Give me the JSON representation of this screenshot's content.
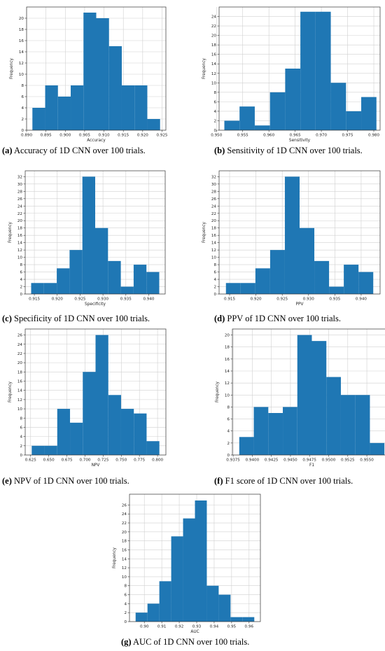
{
  "chart_data": [
    {
      "id": "a",
      "type": "bar",
      "caption_label": "(a)",
      "caption_text": " Accuracy of 1D CNN over 100 trials.",
      "xlabel": "Accuracy",
      "ylabel": "Frequency",
      "bins": [
        0.8915,
        0.8948,
        0.8981,
        0.9014,
        0.9047,
        0.908,
        0.9113,
        0.9146,
        0.9179,
        0.9212,
        0.9245
      ],
      "counts": [
        4,
        8,
        6,
        8,
        21,
        20,
        15,
        8,
        8,
        2
      ],
      "xlim": [
        0.89,
        0.926
      ],
      "ylim": [
        0,
        22
      ],
      "xticks": [
        0.89,
        0.895,
        0.9,
        0.905,
        0.91,
        0.915,
        0.92,
        0.925
      ],
      "xtick_labels": [
        "0.890",
        "0.895",
        "0.900",
        "0.905",
        "0.910",
        "0.915",
        "0.920",
        "0.925"
      ],
      "yticks": [
        0,
        2,
        4,
        6,
        8,
        10,
        12,
        14,
        16,
        18,
        20
      ],
      "grid": true,
      "color": "#1f77b4"
    },
    {
      "id": "b",
      "type": "bar",
      "caption_label": "(b)",
      "caption_text": " Sensitivity of 1D CNN over 100 trials.",
      "xlabel": "Sensitivity",
      "ylabel": "Frequency",
      "bins": [
        0.9515,
        0.9544,
        0.9573,
        0.9602,
        0.9631,
        0.966,
        0.9689,
        0.9718,
        0.9747,
        0.9776,
        0.9805
      ],
      "counts": [
        2,
        5,
        1,
        8,
        13,
        25,
        25,
        10,
        4,
        7
      ],
      "xlim": [
        0.9505,
        0.9812
      ],
      "ylim": [
        0,
        26
      ],
      "xticks": [
        0.95,
        0.955,
        0.96,
        0.965,
        0.97,
        0.975,
        0.98
      ],
      "xtick_labels": [
        "0.950",
        "0.955",
        "0.960",
        "0.965",
        "0.970",
        "0.975",
        "0.980"
      ],
      "yticks": [
        0,
        2,
        4,
        6,
        8,
        10,
        12,
        14,
        16,
        18,
        20,
        22,
        24
      ],
      "grid": true,
      "color": "#1f77b4"
    },
    {
      "id": "c",
      "type": "bar",
      "caption_label": "(c)",
      "caption_text": " Specificity of 1D CNN over 100 trials.",
      "xlabel": "Specificity",
      "ylabel": "Frequency",
      "bins": [
        0.9143,
        0.9171,
        0.9199,
        0.9227,
        0.9255,
        0.9283,
        0.9311,
        0.9339,
        0.9367,
        0.9395,
        0.9423
      ],
      "counts": [
        3,
        3,
        7,
        12,
        32,
        18,
        9,
        2,
        8,
        6
      ],
      "xlim": [
        0.913,
        0.9436
      ],
      "ylim": [
        0,
        33.6
      ],
      "xticks": [
        0.915,
        0.92,
        0.925,
        0.93,
        0.935,
        0.94
      ],
      "xtick_labels": [
        "0.915",
        "0.920",
        "0.925",
        "0.930",
        "0.935",
        "0.940"
      ],
      "yticks": [
        0,
        2,
        4,
        6,
        8,
        10,
        12,
        14,
        16,
        18,
        20,
        22,
        24,
        26,
        28,
        30,
        32
      ],
      "grid": true,
      "color": "#1f77b4"
    },
    {
      "id": "d",
      "type": "bar",
      "caption_label": "(d)",
      "caption_text": " PPV of 1D CNN over 100 trials.",
      "xlabel": "PPV",
      "ylabel": "Frequency",
      "bins": [
        0.9143,
        0.9171,
        0.9199,
        0.9227,
        0.9255,
        0.9283,
        0.9311,
        0.9339,
        0.9367,
        0.9395,
        0.9423
      ],
      "counts": [
        3,
        3,
        7,
        12,
        32,
        18,
        9,
        2,
        8,
        6
      ],
      "xlim": [
        0.913,
        0.9436
      ],
      "ylim": [
        0,
        33.6
      ],
      "xticks": [
        0.915,
        0.92,
        0.925,
        0.93,
        0.935,
        0.94
      ],
      "xtick_labels": [
        "0.915",
        "0.920",
        "0.925",
        "0.930",
        "0.935",
        "0.940"
      ],
      "yticks": [
        0,
        2,
        4,
        6,
        8,
        10,
        12,
        14,
        16,
        18,
        20,
        22,
        24,
        26,
        28,
        30,
        32
      ],
      "grid": true,
      "color": "#1f77b4"
    },
    {
      "id": "e",
      "type": "bar",
      "caption_label": "(e)",
      "caption_text": " NPV of 1D CNN over 100 trials.",
      "xlabel": "NPV",
      "ylabel": "Frequency",
      "bins": [
        0.6265,
        0.6441,
        0.6617,
        0.6793,
        0.6969,
        0.7145,
        0.7321,
        0.7497,
        0.7673,
        0.7849,
        0.8025
      ],
      "counts": [
        2,
        2,
        10,
        7,
        18,
        26,
        13,
        10,
        9,
        3
      ],
      "xlim": [
        0.6175,
        0.8115
      ],
      "ylim": [
        0,
        27.3
      ],
      "xticks": [
        0.625,
        0.65,
        0.675,
        0.7,
        0.725,
        0.75,
        0.775,
        0.8
      ],
      "xtick_labels": [
        "0.625",
        "0.650",
        "0.675",
        "0.700",
        "0.725",
        "0.750",
        "0.775",
        "0.800"
      ],
      "yticks": [
        0,
        2,
        4,
        6,
        8,
        10,
        12,
        14,
        16,
        18,
        20,
        22,
        24,
        26
      ],
      "grid": true,
      "color": "#1f77b4"
    },
    {
      "id": "f",
      "type": "bar",
      "caption_label": "(f)",
      "caption_text": " F1 score of 1D CNN over 100 trials.",
      "xlabel": "F1",
      "ylabel": "Frequency",
      "bins": [
        0.9383,
        0.9402,
        0.9421,
        0.944,
        0.9459,
        0.9478,
        0.9497,
        0.9516,
        0.9535,
        0.9554,
        0.9573
      ],
      "counts": [
        3,
        8,
        7,
        8,
        20,
        19,
        13,
        10,
        10,
        2
      ],
      "xlim": [
        0.9374,
        0.9582
      ],
      "ylim": [
        0,
        21
      ],
      "xticks": [
        0.9375,
        0.94,
        0.9425,
        0.945,
        0.9475,
        0.95,
        0.9525,
        0.955
      ],
      "xtick_labels": [
        "0.9375",
        "0.9400",
        "0.9425",
        "0.9450",
        "0.9475",
        "0.9500",
        "0.9525",
        "0.9550"
      ],
      "yticks": [
        0,
        2,
        4,
        6,
        8,
        10,
        12,
        14,
        16,
        18,
        20
      ],
      "grid": true,
      "color": "#1f77b4"
    },
    {
      "id": "g",
      "type": "bar",
      "caption_label": "(g)",
      "caption_text": " AUC of 1D CNN over 100 trials.",
      "xlabel": "AUC",
      "ylabel": "Frequency",
      "bins": [
        0.895,
        0.9018,
        0.9086,
        0.9154,
        0.9222,
        0.929,
        0.9358,
        0.9426,
        0.9494,
        0.9562,
        0.963
      ],
      "counts": [
        2,
        4,
        9,
        19,
        23,
        27,
        8,
        6,
        1,
        1
      ],
      "xlim": [
        0.8915,
        0.9665
      ],
      "ylim": [
        0,
        28.4
      ],
      "xticks": [
        0.9,
        0.91,
        0.92,
        0.93,
        0.94,
        0.95,
        0.96
      ],
      "xtick_labels": [
        "0.90",
        "0.91",
        "0.92",
        "0.93",
        "0.94",
        "0.95",
        "0.96"
      ],
      "yticks": [
        0,
        2,
        4,
        6,
        8,
        10,
        12,
        14,
        16,
        18,
        20,
        22,
        24,
        26
      ],
      "grid": true,
      "color": "#1f77b4"
    }
  ]
}
